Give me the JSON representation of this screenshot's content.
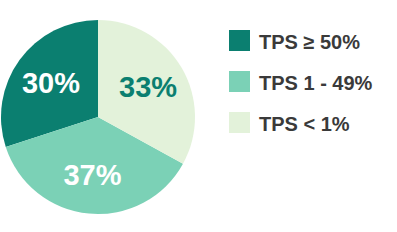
{
  "chart_data": {
    "type": "pie",
    "categories": [
      "TPS ≥ 50%",
      "TPS 1 - 49%",
      "TPS < 1%"
    ],
    "values": [
      30,
      37,
      33
    ],
    "value_labels": [
      "30%",
      "37%",
      "33%"
    ],
    "colors": [
      "#0b7f70",
      "#7bd1b6",
      "#e3f2da"
    ],
    "data_labels": true,
    "legend": "right"
  }
}
